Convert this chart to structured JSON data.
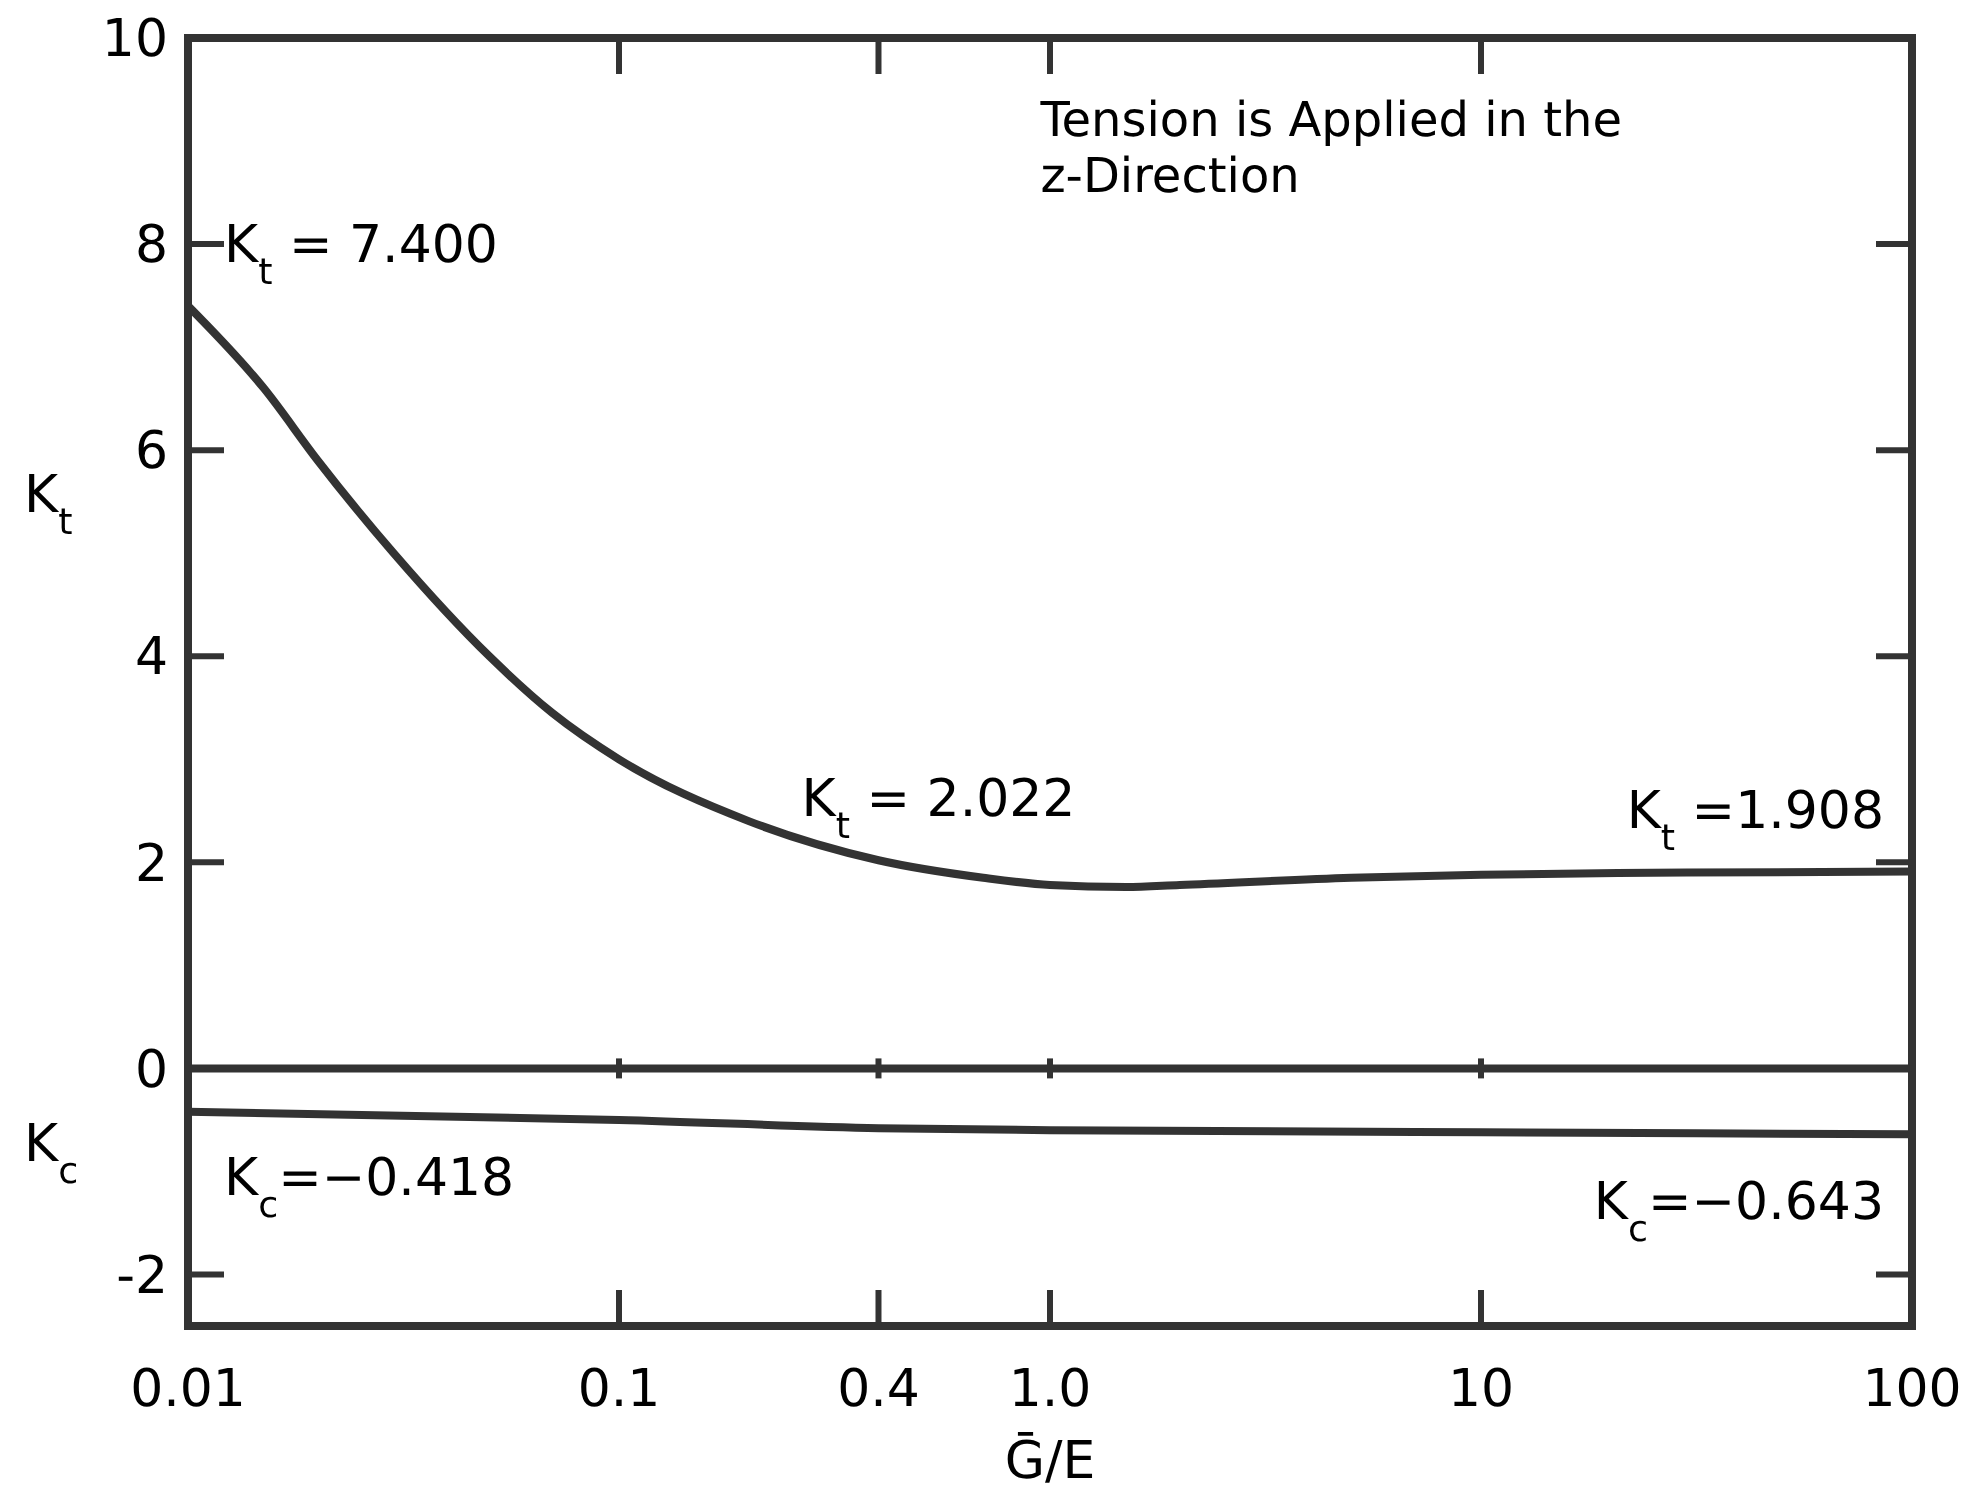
{
  "chart_data": {
    "type": "line",
    "xlabel": "Ḡ/E",
    "ylabel": "K$_{t}$",
    "x": [
      0.01,
      0.015,
      0.02,
      0.03,
      0.05,
      0.07,
      0.1,
      0.2,
      0.4,
      0.7,
      1.0,
      1.5,
      2,
      5,
      10,
      30,
      100
    ],
    "series": [
      {
        "type": "line",
        "color": "#333333",
        "values": [
          7.4,
          6.6,
          5.9,
          5.0,
          4.0,
          3.45,
          3.0,
          2.4,
          2.02,
          1.85,
          1.78,
          1.76,
          1.78,
          1.85,
          1.88,
          1.9,
          1.91
        ]
      },
      {
        "type": "line",
        "color": "#333333",
        "x": [
          0.01,
          0.1,
          0.4,
          1.0,
          10,
          100
        ],
        "values": [
          -0.42,
          -0.5,
          -0.58,
          -0.6,
          -0.62,
          -0.64
        ]
      }
    ],
    "log": "x",
    "xlim": [
      0.01,
      100
    ],
    "xticks": [
      {
        "value": 0.01,
        "label": "0.01"
      },
      {
        "value": 0.1,
        "label": "0.1"
      },
      {
        "value": 0.4,
        "label": "0.4"
      },
      {
        "value": 1,
        "label": "1.0"
      },
      10,
      100
    ],
    "ylim": [
      -2.5,
      10
    ],
    "yticks": [
      -2,
      0,
      2,
      4,
      6,
      8,
      10
    ],
    "ref_lines": [
      {
        "axis": "y",
        "value": 0,
        "color": "#333333"
      }
    ],
    "annotations": [
      "Tension is Applied in the\nz-Direction",
      "K$_{c}$",
      {
        "text": "K$_{t}$ = 7.400",
        "x": 0.01,
        "y": 7.4
      },
      {
        "text": "K$_{t}$ = 2.022",
        "x": 0.4,
        "y": 2.022
      },
      {
        "text": "K$_{t}$ =1.908",
        "x": 100,
        "y": 1.908
      },
      {
        "text": "K$_{c}$=−0.418",
        "x": 0.01,
        "y": -0.418
      },
      {
        "text": "K$_{c}$=−0.643",
        "x": 100,
        "y": -0.643
      }
    ],
    "grid": false,
    "marker": "none",
    "line_style": "solid"
  }
}
